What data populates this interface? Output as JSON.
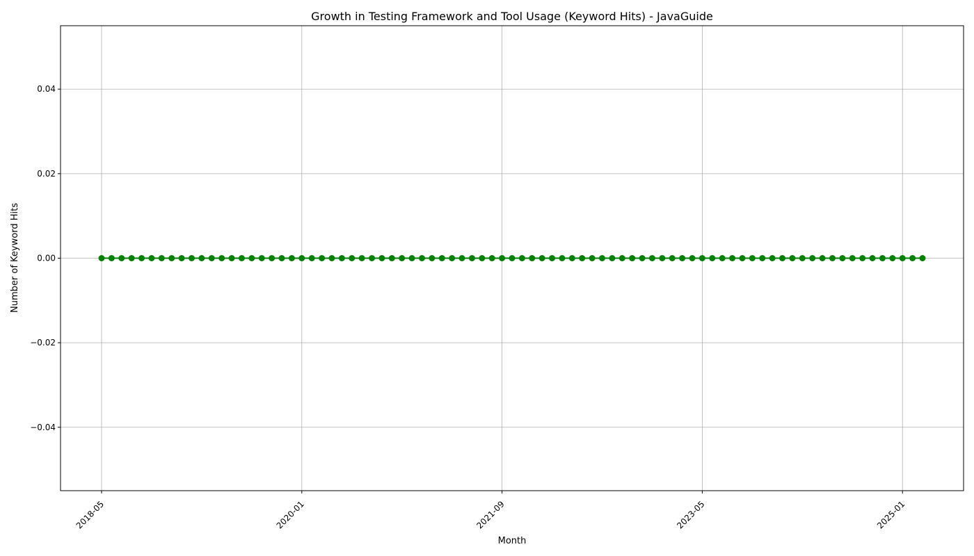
{
  "chart_data": {
    "type": "line",
    "title": "Growth in Testing Framework and Tool Usage (Keyword Hits) - JavaGuide",
    "xlabel": "Month",
    "ylabel": "Number of Keyword Hits",
    "x_start": "2018-05",
    "x_end": "2025-03",
    "x_ticks": [
      "2018-05",
      "2020-01",
      "2021-09",
      "2023-05",
      "2025-01"
    ],
    "ylim": [
      -0.055,
      0.055
    ],
    "y_ticks": [
      -0.04,
      -0.02,
      0.0,
      0.02,
      0.04
    ],
    "y_tick_labels": [
      "−0.04",
      "−0.02",
      "0.00",
      "0.02",
      "0.04"
    ],
    "grid": true,
    "series": [
      {
        "color": "#008000",
        "constant_value": 0
      }
    ]
  }
}
